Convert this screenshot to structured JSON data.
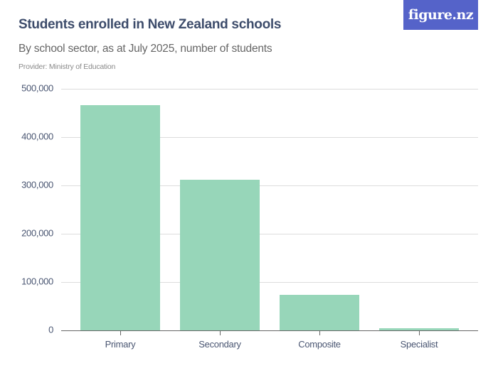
{
  "header": {
    "title": "Students enrolled in New Zealand schools",
    "subtitle": "By school sector, as at July 2025, number of students",
    "provider": "Provider: Ministry of Education",
    "logo": "figure.nz"
  },
  "colors": {
    "bar": "#97d6b9",
    "title": "#3d4c6b",
    "logo_bg": "#5563c9"
  },
  "chart_data": {
    "type": "bar",
    "title": "Students enrolled in New Zealand schools",
    "subtitle": "By school sector, as at July 2025, number of students",
    "xlabel": "",
    "ylabel": "",
    "categories": [
      "Primary",
      "Secondary",
      "Composite",
      "Specialist"
    ],
    "values": [
      466000,
      312000,
      73500,
      3700
    ],
    "ylim": [
      0,
      500000
    ],
    "yticks": [
      0,
      100000,
      200000,
      300000,
      400000,
      500000
    ],
    "ytick_labels": [
      "0",
      "100,000",
      "200,000",
      "300,000",
      "400,000",
      "500,000"
    ],
    "grid": true,
    "legend": "none"
  }
}
